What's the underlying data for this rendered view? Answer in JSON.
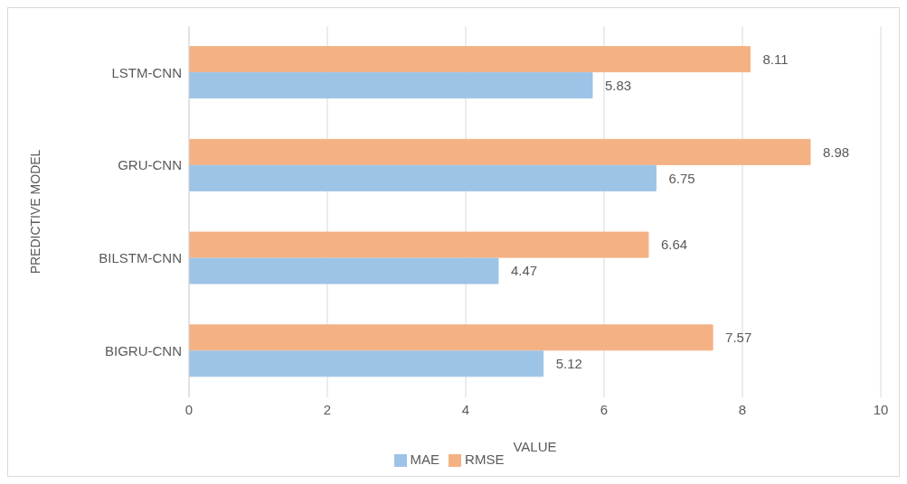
{
  "chart_data": {
    "type": "bar",
    "orientation": "horizontal",
    "categories": [
      "LSTM-CNN",
      "GRU-CNN",
      "BILSTM-CNN",
      "BIGRU-CNN"
    ],
    "series": [
      {
        "name": "RMSE",
        "color": "#f4b183",
        "values": [
          8.11,
          8.98,
          6.64,
          7.57
        ]
      },
      {
        "name": "MAE",
        "color": "#9dc3e6",
        "values": [
          5.83,
          6.75,
          4.47,
          5.12
        ]
      }
    ],
    "xlabel": "VALUE",
    "ylabel": "PREDICTIVE MODEL",
    "xlim": [
      0,
      10
    ],
    "xticks": [
      0,
      2,
      4,
      6,
      8,
      10
    ],
    "grid": "x",
    "legend": "bottom",
    "data_labels": true
  }
}
